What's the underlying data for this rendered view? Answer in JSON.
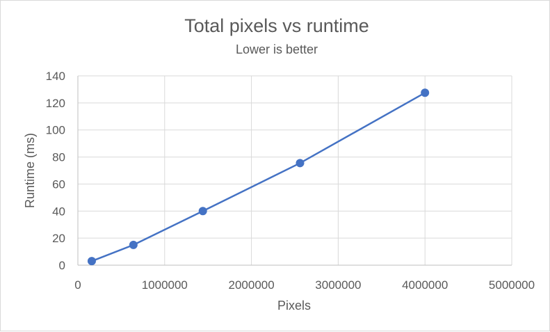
{
  "chart_data": {
    "type": "scatter",
    "title": "Total pixels vs runtime",
    "subtitle": "Lower is better",
    "xlabel": "Pixels",
    "ylabel": "Runtime (ms)",
    "xlim": [
      0,
      5000000
    ],
    "ylim": [
      0,
      140
    ],
    "xticks": [
      0,
      1000000,
      2000000,
      3000000,
      4000000,
      5000000
    ],
    "yticks": [
      0,
      20,
      40,
      60,
      80,
      100,
      120,
      140
    ],
    "grid": true,
    "legend": "none",
    "series": [
      {
        "name": "Runtime",
        "color": "#4472c4",
        "x": [
          160000,
          640000,
          1440000,
          2560000,
          4000000
        ],
        "y": [
          3,
          15,
          40,
          75.5,
          127.5
        ]
      }
    ]
  }
}
